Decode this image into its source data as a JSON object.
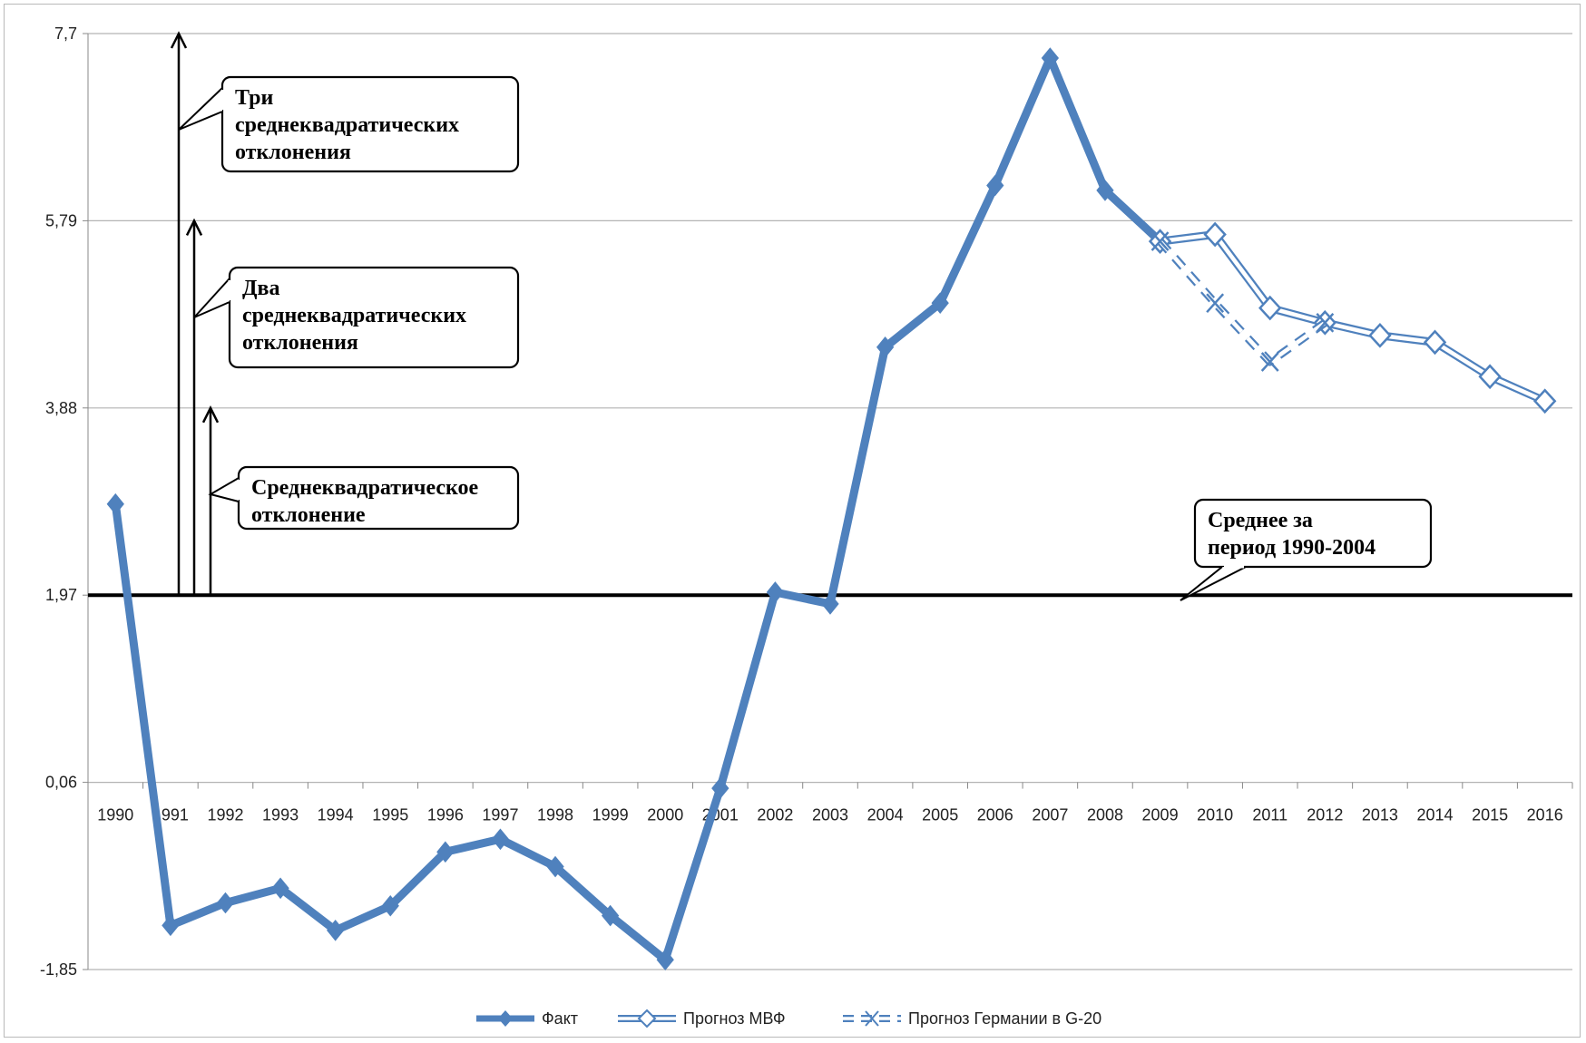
{
  "chart_data": {
    "type": "line",
    "categories": [
      "1990",
      "1991",
      "1992",
      "1993",
      "1994",
      "1995",
      "1996",
      "1997",
      "1998",
      "1999",
      "2000",
      "2001",
      "2002",
      "2003",
      "2004",
      "2005",
      "2006",
      "2007",
      "2008",
      "2009",
      "2010",
      "2011",
      "2012",
      "2013",
      "2014",
      "2015",
      "2016"
    ],
    "y_ticks": [
      "-1,85",
      "0,06",
      "1,97",
      "3,88",
      "5,79",
      "7,7"
    ],
    "ylim": [
      -1.85,
      7.7
    ],
    "grid": true,
    "legend_position": "bottom",
    "series": [
      {
        "name": "Факт",
        "color": "#4f81bd",
        "style": "solid",
        "values": [
          2.9,
          -1.4,
          -1.17,
          -1.02,
          -1.45,
          -1.2,
          -0.65,
          -0.52,
          -0.8,
          -1.3,
          -1.75,
          0.0,
          2.0,
          1.88,
          4.5,
          4.95,
          6.15,
          7.45,
          6.1,
          5.58,
          null,
          null,
          null,
          null,
          null,
          null,
          null
        ]
      },
      {
        "name": "Прогноз МВФ",
        "color": "#4f81bd",
        "style": "double",
        "values": [
          null,
          null,
          null,
          null,
          null,
          null,
          null,
          null,
          null,
          null,
          null,
          null,
          null,
          null,
          null,
          null,
          null,
          null,
          null,
          5.58,
          5.65,
          4.9,
          4.75,
          4.62,
          4.55,
          4.2,
          3.95
        ]
      },
      {
        "name": "Прогноз Германии в G-20",
        "color": "#4f81bd",
        "style": "double-dashed",
        "values": [
          null,
          null,
          null,
          null,
          null,
          null,
          null,
          null,
          null,
          null,
          null,
          null,
          null,
          null,
          null,
          null,
          null,
          null,
          null,
          5.58,
          4.95,
          4.35,
          4.75,
          null,
          null,
          null,
          null
        ]
      }
    ],
    "reference_line": {
      "value": 1.97
    },
    "annotations": [
      {
        "id": "three_sigma",
        "lines": [
          "Три",
          "среднеквадратических",
          "отклонения"
        ],
        "level": 7.7
      },
      {
        "id": "two_sigma",
        "lines": [
          "Два",
          "среднеквадратических",
          "отклонения"
        ],
        "level": 5.79
      },
      {
        "id": "one_sigma",
        "lines": [
          "Среднеквадратическое",
          "отклонение"
        ],
        "level": 3.88
      },
      {
        "id": "mean",
        "lines": [
          "Среднее за",
          "период 1990-2004"
        ],
        "level": 1.97
      }
    ]
  }
}
